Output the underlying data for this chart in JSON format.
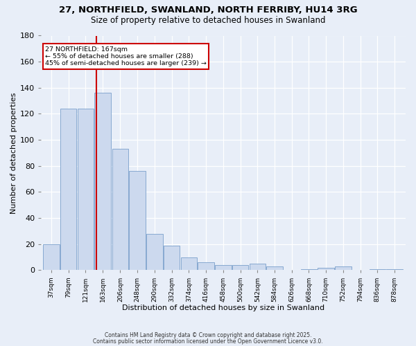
{
  "title_line1": "27, NORTHFIELD, SWANLAND, NORTH FERRIBY, HU14 3RG",
  "title_line2": "Size of property relative to detached houses in Swanland",
  "xlabel": "Distribution of detached houses by size in Swanland",
  "ylabel": "Number of detached properties",
  "bin_labels": [
    "37sqm",
    "79sqm",
    "121sqm",
    "163sqm",
    "206sqm",
    "248sqm",
    "290sqm",
    "332sqm",
    "374sqm",
    "416sqm",
    "458sqm",
    "500sqm",
    "542sqm",
    "584sqm",
    "626sqm",
    "668sqm",
    "710sqm",
    "752sqm",
    "794sqm",
    "836sqm",
    "878sqm"
  ],
  "bar_values": [
    20,
    124,
    124,
    136,
    93,
    76,
    28,
    19,
    10,
    6,
    4,
    4,
    5,
    3,
    0,
    1,
    2,
    3,
    0,
    1,
    1
  ],
  "bar_color": "#ccd9ee",
  "bar_edgecolor": "#7a9fcb",
  "subject_label": "27 NORTHFIELD: 167sqm",
  "annotation_text_line1": "← 55% of detached houses are smaller (288)",
  "annotation_text_line2": "45% of semi-detached houses are larger (239) →",
  "red_line_color": "#cc0000",
  "annotation_box_edgecolor": "#cc0000",
  "annotation_box_facecolor": "#ffffff",
  "footer_line1": "Contains HM Land Registry data © Crown copyright and database right 2025.",
  "footer_line2": "Contains public sector information licensed under the Open Government Licence v3.0.",
  "background_color": "#e8eef8",
  "ylim": [
    0,
    180
  ],
  "red_line_x": 163
}
